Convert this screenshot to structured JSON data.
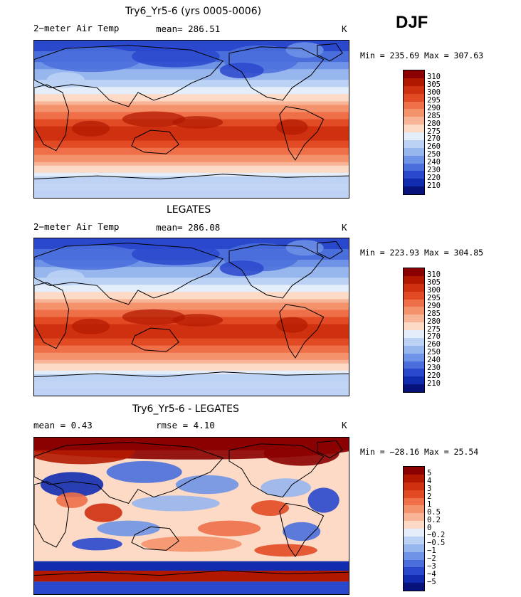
{
  "season": "DJF",
  "panels": [
    {
      "title": "Try6_Yr5-6 (yrs 0005-0006)",
      "left_label": "2−meter Air Temp",
      "mid_label": "mean= 286.51",
      "unit": "K",
      "minmax": "Min = 235.69 Max = 307.63",
      "stats": {
        "mean": 286.51,
        "min": 235.69,
        "max": 307.63
      }
    },
    {
      "title": "LEGATES",
      "left_label": "2−meter Air Temp",
      "mid_label": "mean= 286.08",
      "unit": "K",
      "minmax": "Min = 223.93 Max = 304.85",
      "stats": {
        "mean": 286.08,
        "min": 223.93,
        "max": 304.85
      }
    },
    {
      "title": "Try6_Yr5-6 - LEGATES",
      "left_label": "mean =    0.43",
      "mid_label": "rmse =    4.10",
      "unit": "K",
      "minmax": "Min = −28.16 Max =  25.54",
      "stats": {
        "mean": 0.43,
        "rmse": 4.1,
        "min": -28.16,
        "max": 25.54
      }
    }
  ],
  "chart_data": [
    {
      "type": "heatmap",
      "title": "Try6_Yr5-6 (yrs 0005-0006)",
      "variable": "2-meter Air Temp",
      "units": "K",
      "mean": 286.51,
      "min": 235.69,
      "max": 307.63,
      "colorbar_levels": [
        "310",
        "305",
        "300",
        "295",
        "290",
        "285",
        "280",
        "275",
        "270",
        "260",
        "250",
        "240",
        "230",
        "220",
        "210"
      ],
      "colors": [
        "#8b0000",
        "#b21800",
        "#cf3010",
        "#e24a24",
        "#ee6f48",
        "#f4926c",
        "#f8b497",
        "#fddac6",
        "#e4eefa",
        "#bcd2f4",
        "#97b6ee",
        "#6f93e6",
        "#4a6fdc",
        "#2a48cc",
        "#122cb0",
        "#07127a"
      ]
    },
    {
      "type": "heatmap",
      "title": "LEGATES",
      "variable": "2-meter Air Temp",
      "units": "K",
      "mean": 286.08,
      "min": 223.93,
      "max": 304.85,
      "colorbar_levels": [
        "310",
        "305",
        "300",
        "295",
        "290",
        "285",
        "280",
        "275",
        "270",
        "260",
        "250",
        "240",
        "230",
        "220",
        "210"
      ],
      "colors": [
        "#8b0000",
        "#b21800",
        "#cf3010",
        "#e24a24",
        "#ee6f48",
        "#f4926c",
        "#f8b497",
        "#fddac6",
        "#e4eefa",
        "#bcd2f4",
        "#97b6ee",
        "#6f93e6",
        "#4a6fdc",
        "#2a48cc",
        "#122cb0",
        "#07127a"
      ]
    },
    {
      "type": "heatmap",
      "title": "Try6_Yr5-6 - LEGATES",
      "variable": "difference",
      "units": "K",
      "mean": 0.43,
      "rmse": 4.1,
      "min": -28.16,
      "max": 25.54,
      "colorbar_levels": [
        "5",
        "4",
        "3",
        "2",
        "1",
        "0.5",
        "0.2",
        "0",
        "−0.2",
        "−0.5",
        "−1",
        "−2",
        "−3",
        "−4",
        "−5"
      ],
      "colors": [
        "#8b0000",
        "#b21800",
        "#cf3010",
        "#e24a24",
        "#ee6f48",
        "#f4926c",
        "#f8b497",
        "#fddac6",
        "#e4eefa",
        "#bcd2f4",
        "#97b6ee",
        "#6f93e6",
        "#4a6fdc",
        "#2a48cc",
        "#122cb0",
        "#07127a"
      ]
    }
  ]
}
